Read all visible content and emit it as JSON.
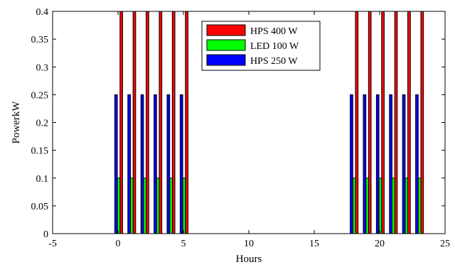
{
  "chart_data": {
    "type": "bar",
    "xlabel": "Hours",
    "ylabel": "PowerkW",
    "xlim": [
      -5,
      25
    ],
    "ylim": [
      0,
      0.4
    ],
    "xticks": [
      -5,
      0,
      5,
      10,
      15,
      20,
      25
    ],
    "yticks": [
      0,
      0.05,
      0.1,
      0.15,
      0.2,
      0.25,
      0.3,
      0.35,
      0.4
    ],
    "ytick_labels": [
      "0",
      "0.05",
      "0.1",
      "0.15",
      "0.2",
      "0.25",
      "0.3",
      "0.35",
      "0.4"
    ],
    "grid": false,
    "legend_position": "top-center",
    "x": [
      0,
      1,
      2,
      3,
      4,
      5,
      18,
      19,
      20,
      21,
      22,
      23
    ],
    "series": [
      {
        "name": "HPS 400 W",
        "color": "#ff0000",
        "values": [
          0.4,
          0.4,
          0.4,
          0.4,
          0.4,
          0.4,
          0.4,
          0.4,
          0.4,
          0.4,
          0.4,
          0.4
        ]
      },
      {
        "name": "LED 100 W",
        "color": "#00ff00",
        "values": [
          0.1,
          0.1,
          0.1,
          0.1,
          0.1,
          0.1,
          0.1,
          0.1,
          0.1,
          0.1,
          0.1,
          0.1
        ]
      },
      {
        "name": "HPS 250 W",
        "color": "#0000ff",
        "values": [
          0.25,
          0.25,
          0.25,
          0.25,
          0.25,
          0.25,
          0.25,
          0.25,
          0.25,
          0.25,
          0.25,
          0.25
        ]
      }
    ]
  }
}
